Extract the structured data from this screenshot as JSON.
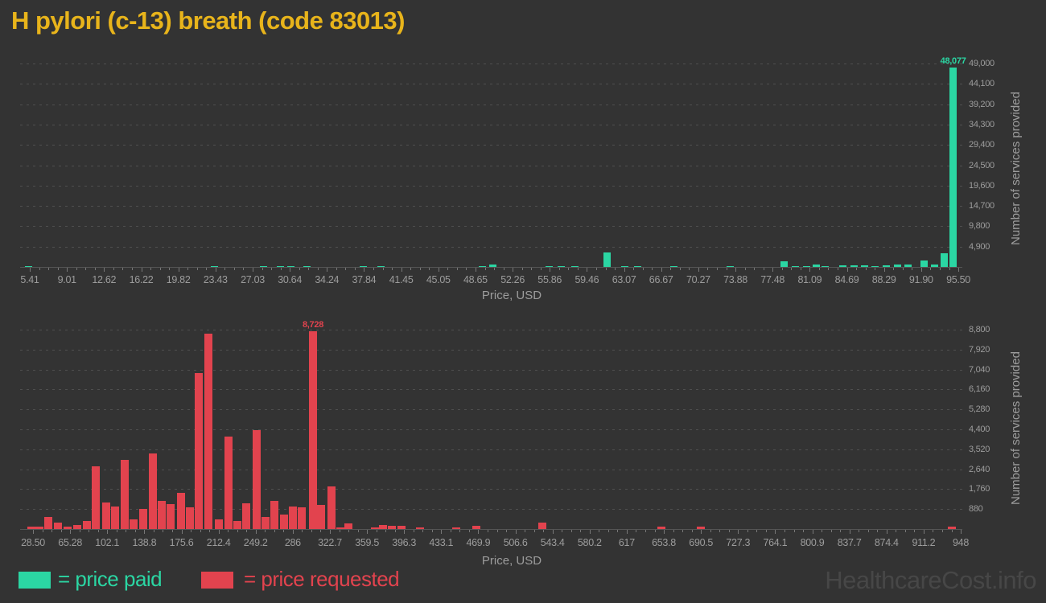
{
  "page": {
    "title": "H pylori (c-13) breath (code 83013)",
    "watermark": "HealthcareCost.info"
  },
  "legend": {
    "paid_label": "= price paid",
    "requested_label": "= price requested"
  },
  "colors": {
    "background": "#333333",
    "title": "#e8b41b",
    "price_paid": "#2bd6a3",
    "price_requested": "#e2434e",
    "axis_text": "#9c9c9c",
    "gridline": "#4f4f4f",
    "watermark": "#474747"
  },
  "chart_data": [
    {
      "type": "bar",
      "name": "price_paid",
      "color": "#2bd6a3",
      "xlabel": "Price, USD",
      "ylabel": "Number of services provided",
      "xlim": [
        5.41,
        95.5
      ],
      "ylim": [
        0,
        49000
      ],
      "grid": "horizontal-dashed",
      "legend_position": "bottom",
      "x_tick_labels": [
        "5.41",
        "9.01",
        "12.62",
        "16.22",
        "19.82",
        "23.43",
        "27.03",
        "30.64",
        "34.24",
        "37.84",
        "41.45",
        "45.05",
        "48.65",
        "52.26",
        "55.86",
        "59.46",
        "63.07",
        "66.67",
        "70.27",
        "73.88",
        "77.48",
        "81.09",
        "84.69",
        "88.29",
        "91.90",
        "95.50"
      ],
      "y_tick_labels": [
        "4,900",
        "9,800",
        "14,700",
        "19,600",
        "24,500",
        "29,400",
        "34,300",
        "39,200",
        "44,100",
        "49,000"
      ],
      "peak_label": "48,077",
      "bars": [
        [
          5.3,
          150
        ],
        [
          23.3,
          200
        ],
        [
          28.1,
          170
        ],
        [
          29.7,
          200
        ],
        [
          30.7,
          150
        ],
        [
          32.3,
          150
        ],
        [
          37.8,
          150
        ],
        [
          39.5,
          150
        ],
        [
          49.3,
          200
        ],
        [
          50.3,
          500
        ],
        [
          55.8,
          180
        ],
        [
          57.0,
          200
        ],
        [
          58.3,
          200
        ],
        [
          61.4,
          3400
        ],
        [
          63.1,
          250
        ],
        [
          64.4,
          150
        ],
        [
          67.9,
          150
        ],
        [
          73.4,
          200
        ],
        [
          78.6,
          1350
        ],
        [
          79.7,
          150
        ],
        [
          80.8,
          150
        ],
        [
          81.7,
          500
        ],
        [
          82.6,
          260
        ],
        [
          84.3,
          390
        ],
        [
          85.4,
          460
        ],
        [
          86.4,
          330
        ],
        [
          87.4,
          260
        ],
        [
          88.5,
          460
        ],
        [
          89.6,
          520
        ],
        [
          90.6,
          650
        ],
        [
          92.2,
          1600
        ],
        [
          93.2,
          650
        ],
        [
          94.1,
          3300
        ],
        [
          95.0,
          48077
        ]
      ]
    },
    {
      "type": "bar",
      "name": "price_requested",
      "color": "#e2434e",
      "xlabel": "Price, USD",
      "ylabel": "Number of services provided",
      "xlim": [
        28.5,
        948
      ],
      "ylim": [
        0,
        8800
      ],
      "grid": "horizontal-dashed",
      "legend_position": "bottom",
      "x_tick_labels": [
        "28.50",
        "65.28",
        "102.1",
        "138.8",
        "175.6",
        "212.4",
        "249.2",
        "286",
        "322.7",
        "359.5",
        "396.3",
        "433.1",
        "469.9",
        "506.6",
        "543.4",
        "580.2",
        "617",
        "653.8",
        "690.5",
        "727.3",
        "764.1",
        "800.9",
        "837.7",
        "874.4",
        "911.2",
        "948"
      ],
      "y_tick_labels": [
        "880",
        "1,760",
        "2,640",
        "3,520",
        "4,400",
        "5,280",
        "6,160",
        "7,040",
        "7,920",
        "8,800"
      ],
      "peak_label": "8,728",
      "bars": [
        [
          27,
          100
        ],
        [
          35,
          120
        ],
        [
          44,
          530
        ],
        [
          53,
          300
        ],
        [
          63,
          100
        ],
        [
          72,
          175
        ],
        [
          82,
          355
        ],
        [
          91,
          2780
        ],
        [
          101,
          1180
        ],
        [
          110,
          1000
        ],
        [
          119,
          3070
        ],
        [
          128,
          415
        ],
        [
          138,
          885
        ],
        [
          147,
          3340
        ],
        [
          156,
          1240
        ],
        [
          165,
          1100
        ],
        [
          175,
          1595
        ],
        [
          184,
          945
        ],
        [
          193,
          6875
        ],
        [
          202,
          8630
        ],
        [
          213,
          415
        ],
        [
          222,
          4075
        ],
        [
          231,
          355
        ],
        [
          240,
          1120
        ],
        [
          250,
          4370
        ],
        [
          259,
          530
        ],
        [
          268,
          1240
        ],
        [
          277,
          650
        ],
        [
          286,
          1000
        ],
        [
          295,
          945
        ],
        [
          306,
          8728
        ],
        [
          314,
          1060
        ],
        [
          324,
          1890
        ],
        [
          333,
          60
        ],
        [
          341,
          250
        ],
        [
          367,
          70
        ],
        [
          375,
          175
        ],
        [
          384,
          150
        ],
        [
          394,
          130
        ],
        [
          412,
          70
        ],
        [
          448,
          70
        ],
        [
          468,
          140
        ],
        [
          533,
          290
        ],
        [
          651,
          120
        ],
        [
          690,
          100
        ],
        [
          939,
          100
        ]
      ]
    }
  ]
}
